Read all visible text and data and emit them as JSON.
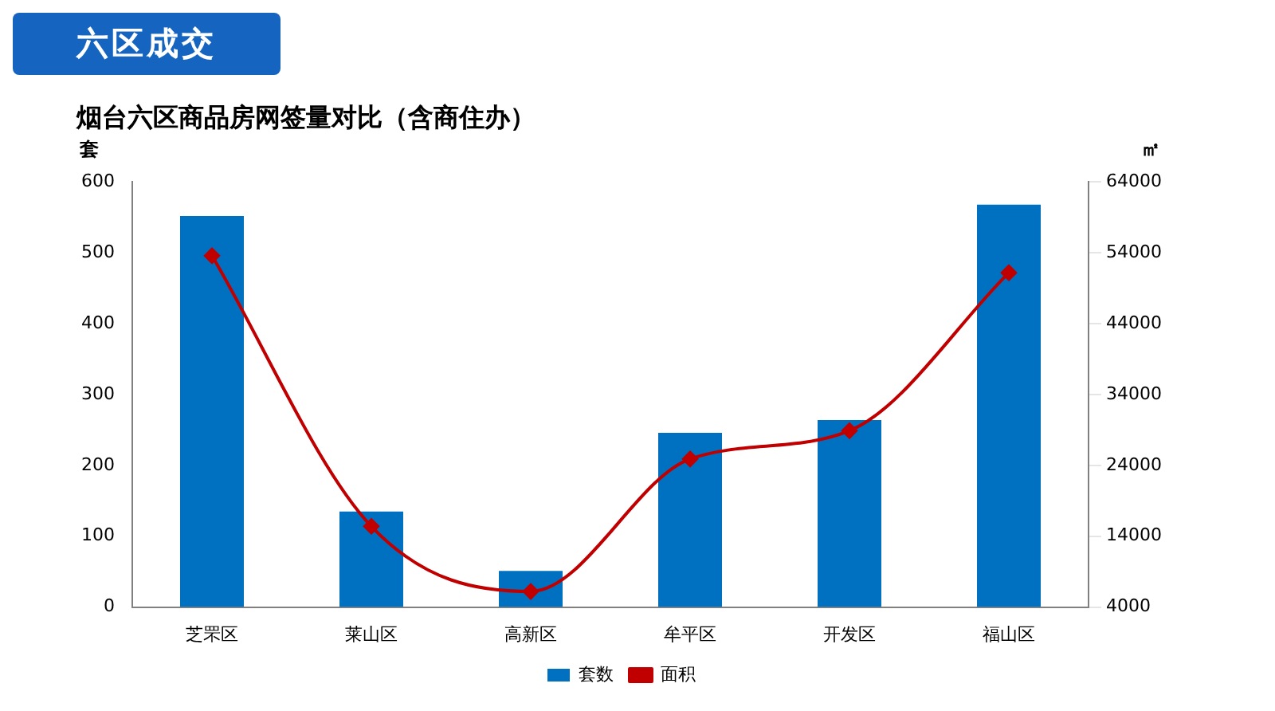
{
  "chart_data": {
    "type": "bar",
    "title": "烟台六区商品房网签量对比（含商住办）",
    "subtitle": "六区成交",
    "ylabel": "套",
    "y2label": "㎡",
    "categories": [
      "芝罘区",
      "莱山区",
      "高新区",
      "牟平区",
      "开发区",
      "福山区"
    ],
    "series": [
      {
        "name": "套数",
        "color": "#0070c0",
        "values": [
          552,
          135,
          51,
          246,
          264,
          568
        ]
      },
      {
        "name": "面积",
        "type": "line",
        "axis": "y2",
        "color": "#c00000",
        "marker": "diamond",
        "values": [
          53600,
          15400,
          6200,
          24900,
          28900,
          51200
        ]
      }
    ],
    "ylim": [
      0,
      600
    ],
    "yticks": [
      0,
      100,
      200,
      300,
      400,
      500,
      600
    ],
    "y2lim": [
      4000,
      64000
    ],
    "y2ticks": [
      4000,
      14000,
      24000,
      34000,
      44000,
      54000,
      64000
    ],
    "grid": false,
    "legend": "bottom"
  }
}
